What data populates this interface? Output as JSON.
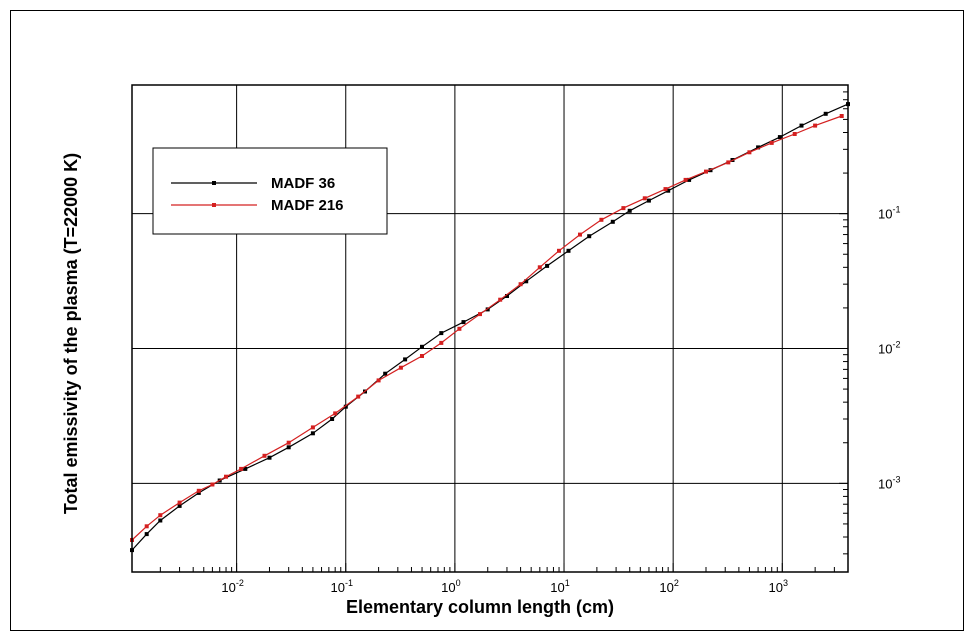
{
  "chart_data": {
    "type": "line",
    "ylabel": "Total emissivity of the plasma (T=22000 K)",
    "xlabel": "Elementary column length (cm)",
    "xscale": "log",
    "yscale": "log",
    "xlim": [
      0.0011,
      4000
    ],
    "ylim": [
      0.00022,
      0.9
    ],
    "x_ticks": [
      {
        "base": "10",
        "exp": "-2",
        "value": 0.01
      },
      {
        "base": "10",
        "exp": "-1",
        "value": 0.1
      },
      {
        "base": "10",
        "exp": "0",
        "value": 1
      },
      {
        "base": "10",
        "exp": "1",
        "value": 10
      },
      {
        "base": "10",
        "exp": "2",
        "value": 100
      },
      {
        "base": "10",
        "exp": "3",
        "value": 1000
      }
    ],
    "y_ticks": [
      {
        "base": "10",
        "exp": "-3",
        "value": 0.001
      },
      {
        "base": "10",
        "exp": "-2",
        "value": 0.01
      },
      {
        "base": "10",
        "exp": "-1",
        "value": 0.1
      }
    ],
    "grid": true,
    "legend_position": "top-left",
    "series": [
      {
        "name": "MADF 36",
        "color": "#000000",
        "marker": "square",
        "x": [
          0.0011,
          0.0015,
          0.002,
          0.003,
          0.0045,
          0.007,
          0.012,
          0.02,
          0.03,
          0.05,
          0.075,
          0.1,
          0.15,
          0.23,
          0.35,
          0.5,
          0.75,
          1.2,
          2,
          3,
          4.5,
          7,
          11,
          17,
          28,
          40,
          60,
          90,
          140,
          220,
          350,
          600,
          950,
          1500,
          2500,
          4000
        ],
        "y": [
          0.00032,
          0.00042,
          0.00053,
          0.00068,
          0.00085,
          0.00105,
          0.00128,
          0.00155,
          0.00185,
          0.00235,
          0.003,
          0.0037,
          0.0048,
          0.0065,
          0.0083,
          0.0103,
          0.013,
          0.0157,
          0.0195,
          0.0245,
          0.0315,
          0.041,
          0.053,
          0.068,
          0.087,
          0.105,
          0.125,
          0.148,
          0.178,
          0.21,
          0.25,
          0.31,
          0.37,
          0.45,
          0.55,
          0.65
        ]
      },
      {
        "name": "MADF 216",
        "color": "#d42020",
        "marker": "square",
        "x": [
          0.0011,
          0.0015,
          0.002,
          0.003,
          0.0045,
          0.006,
          0.008,
          0.011,
          0.018,
          0.03,
          0.05,
          0.08,
          0.13,
          0.2,
          0.32,
          0.5,
          0.75,
          1.1,
          1.7,
          2.6,
          4,
          6,
          9,
          14,
          22,
          35,
          55,
          85,
          130,
          200,
          320,
          500,
          800,
          1300,
          2000,
          3500
        ],
        "y": [
          0.00038,
          0.00048,
          0.00058,
          0.00072,
          0.00088,
          0.00098,
          0.00112,
          0.00128,
          0.0016,
          0.002,
          0.0026,
          0.0033,
          0.0044,
          0.0058,
          0.0072,
          0.0088,
          0.011,
          0.014,
          0.018,
          0.023,
          0.03,
          0.04,
          0.053,
          0.07,
          0.09,
          0.11,
          0.13,
          0.152,
          0.178,
          0.205,
          0.24,
          0.285,
          0.335,
          0.39,
          0.45,
          0.53
        ]
      }
    ]
  }
}
